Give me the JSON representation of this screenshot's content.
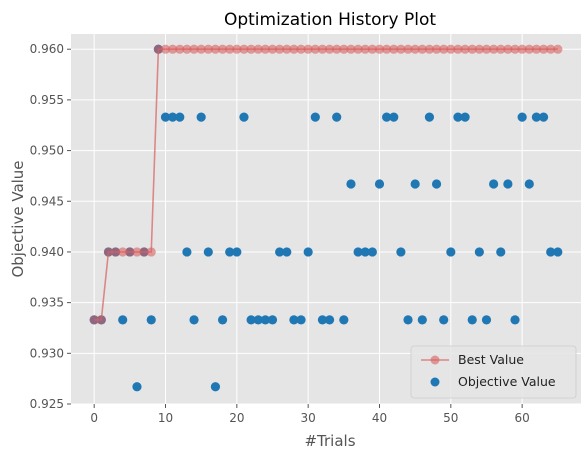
{
  "chart_data": {
    "type": "scatter",
    "title": "Optimization History Plot",
    "xlabel": "#Trials",
    "ylabel": "Objective Value",
    "xlim": [
      -3.25,
      68.25
    ],
    "ylim": [
      0.925,
      0.9615
    ],
    "xticks": [
      0,
      10,
      20,
      30,
      40,
      50,
      60
    ],
    "yticks": [
      0.925,
      0.93,
      0.935,
      0.94,
      0.945,
      0.95,
      0.955,
      0.96
    ],
    "ytick_labels": [
      "0.925",
      "0.930",
      "0.935",
      "0.940",
      "0.945",
      "0.950",
      "0.955",
      "0.960"
    ],
    "grid": true,
    "legend_position": "lower-right",
    "colors": {
      "background": "#e5e5e5",
      "grid": "#ffffff",
      "best_line": "#d95f5f",
      "objective": "#1f77b4"
    },
    "series": [
      {
        "name": "Objective Value",
        "kind": "scatter",
        "x": [
          0,
          1,
          2,
          3,
          4,
          5,
          6,
          7,
          8,
          9,
          10,
          11,
          12,
          13,
          14,
          15,
          16,
          17,
          18,
          19,
          20,
          21,
          22,
          23,
          24,
          25,
          26,
          27,
          28,
          29,
          30,
          31,
          32,
          33,
          34,
          35,
          36,
          37,
          38,
          39,
          40,
          41,
          42,
          43,
          44,
          45,
          46,
          47,
          48,
          49,
          50,
          51,
          52,
          53,
          54,
          55,
          56,
          57,
          58,
          59,
          60,
          61,
          62,
          63,
          64,
          65
        ],
        "y": [
          0.9333,
          0.9333,
          0.94,
          0.94,
          0.9333,
          0.94,
          0.9267,
          0.94,
          0.9333,
          0.96,
          0.9533,
          0.9533,
          0.9533,
          0.94,
          0.9333,
          0.9533,
          0.94,
          0.9267,
          0.9333,
          0.94,
          0.94,
          0.9533,
          0.9333,
          0.9333,
          0.9333,
          0.9333,
          0.94,
          0.94,
          0.9333,
          0.9333,
          0.94,
          0.9533,
          0.9333,
          0.9333,
          0.9533,
          0.9333,
          0.9467,
          0.94,
          0.94,
          0.94,
          0.9467,
          0.9533,
          0.9533,
          0.94,
          0.9333,
          0.9467,
          0.9333,
          0.9533,
          0.9467,
          0.9333,
          0.94,
          0.9533,
          0.9533,
          0.9333,
          0.94,
          0.9333,
          0.9467,
          0.94,
          0.9467,
          0.9333,
          0.9533,
          0.9467,
          0.9533,
          0.9533,
          0.94,
          0.94
        ]
      },
      {
        "name": "Best Value",
        "kind": "line",
        "x": [
          0,
          1,
          2,
          3,
          4,
          5,
          6,
          7,
          8,
          9,
          10,
          11,
          12,
          13,
          14,
          15,
          16,
          17,
          18,
          19,
          20,
          21,
          22,
          23,
          24,
          25,
          26,
          27,
          28,
          29,
          30,
          31,
          32,
          33,
          34,
          35,
          36,
          37,
          38,
          39,
          40,
          41,
          42,
          43,
          44,
          45,
          46,
          47,
          48,
          49,
          50,
          51,
          52,
          53,
          54,
          55,
          56,
          57,
          58,
          59,
          60,
          61,
          62,
          63,
          64,
          65
        ],
        "y": [
          0.9333,
          0.9333,
          0.94,
          0.94,
          0.94,
          0.94,
          0.94,
          0.94,
          0.94,
          0.96,
          0.96,
          0.96,
          0.96,
          0.96,
          0.96,
          0.96,
          0.96,
          0.96,
          0.96,
          0.96,
          0.96,
          0.96,
          0.96,
          0.96,
          0.96,
          0.96,
          0.96,
          0.96,
          0.96,
          0.96,
          0.96,
          0.96,
          0.96,
          0.96,
          0.96,
          0.96,
          0.96,
          0.96,
          0.96,
          0.96,
          0.96,
          0.96,
          0.96,
          0.96,
          0.96,
          0.96,
          0.96,
          0.96,
          0.96,
          0.96,
          0.96,
          0.96,
          0.96,
          0.96,
          0.96,
          0.96,
          0.96,
          0.96,
          0.96,
          0.96,
          0.96,
          0.96,
          0.96,
          0.96,
          0.96,
          0.96
        ]
      }
    ]
  }
}
